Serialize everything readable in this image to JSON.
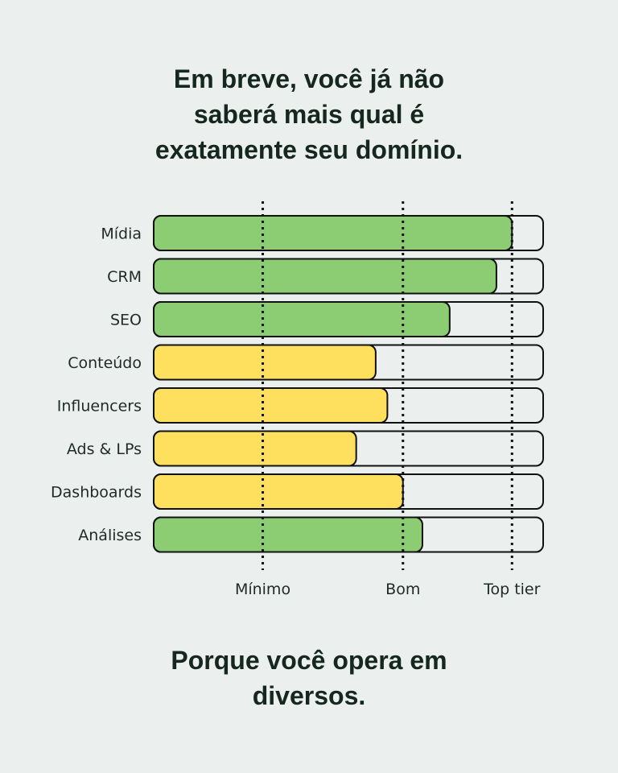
{
  "title": {
    "line1": "Em breve, você já não",
    "line2": "saberá mais qual é",
    "line3": "exatamente seu domínio."
  },
  "footer": {
    "line1": "Porque você opera em",
    "line2": "diversos."
  },
  "colors": {
    "background": "#ebf0ef",
    "green": "#8ccd73",
    "yellow": "#ffdf5e",
    "track": "#ebf0ef",
    "outline": "#111111"
  },
  "chart_data": {
    "type": "bar",
    "orientation": "horizontal",
    "categories": [
      "Mídia",
      "CRM",
      "SEO",
      "Conteúdo",
      "Influencers",
      "Ads & LPs",
      "Dashboards",
      "Análises"
    ],
    "values": [
      92,
      88,
      76,
      57,
      60,
      52,
      64,
      69
    ],
    "bar_colors": [
      "green",
      "green",
      "green",
      "yellow",
      "yellow",
      "yellow",
      "yellow",
      "green"
    ],
    "xlim": [
      0,
      100
    ],
    "reference_lines": [
      {
        "label": "Mínimo",
        "value": 28
      },
      {
        "label": "Bom",
        "value": 64
      },
      {
        "label": "Top tier",
        "value": 92
      }
    ]
  }
}
